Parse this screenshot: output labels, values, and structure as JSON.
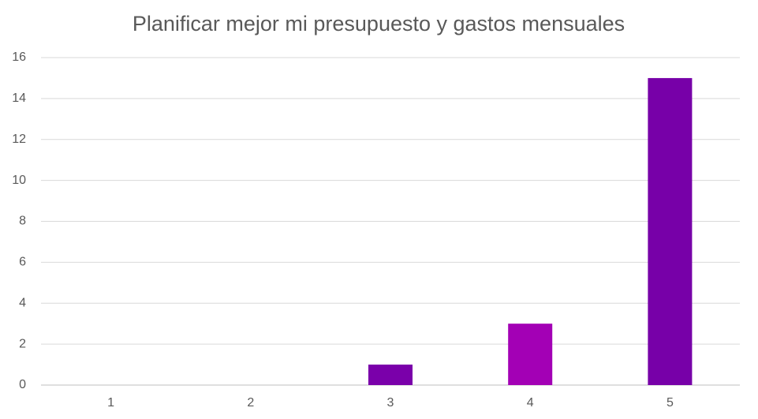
{
  "chart_data": {
    "type": "bar",
    "title": "Planificar mejor mi presupuesto y gastos mensuales",
    "categories": [
      "1",
      "2",
      "3",
      "4",
      "5"
    ],
    "values": [
      0,
      0,
      1,
      3,
      15
    ],
    "colors": [
      "#7a00aa",
      "#7a00aa",
      "#7a00aa",
      "#a300b5",
      "#7700a8"
    ],
    "ylim": [
      0,
      16
    ],
    "yticks": [
      0,
      2,
      4,
      6,
      8,
      10,
      12,
      14,
      16
    ],
    "grid": true
  }
}
